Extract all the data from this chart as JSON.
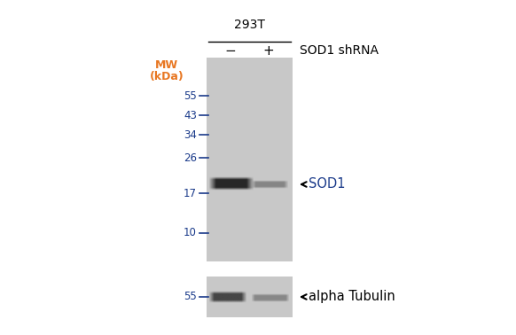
{
  "bg_color": "#ffffff",
  "fig_width": 5.82,
  "fig_height": 3.78,
  "dpi": 100,
  "gel_bg_light": "#c8c8c8",
  "gel_bg_dark": "#b0b0b0",
  "cell_line_label": "293T",
  "minus_label": "−",
  "plus_label": "+",
  "shrna_label": "SOD1 shRNA",
  "sod1_label": "SOD1",
  "tubulin_label": "alpha Tubulin",
  "mw_label_line1": "MW",
  "mw_label_line2": "(kDa)",
  "mw_color": "#e87722",
  "mw_num_color": "#1a3a8a",
  "tick_color": "#1a3a8a",
  "mw_markers_upper": [
    55,
    43,
    34,
    26,
    17,
    10
  ],
  "mw_markers_lower": [
    55
  ],
  "band1_color": "#1a1a1a",
  "band2_color": "#6a6a6a",
  "band3_color": "#2a2a2a",
  "band4_color": "#707070",
  "arrow_color": "#000000"
}
